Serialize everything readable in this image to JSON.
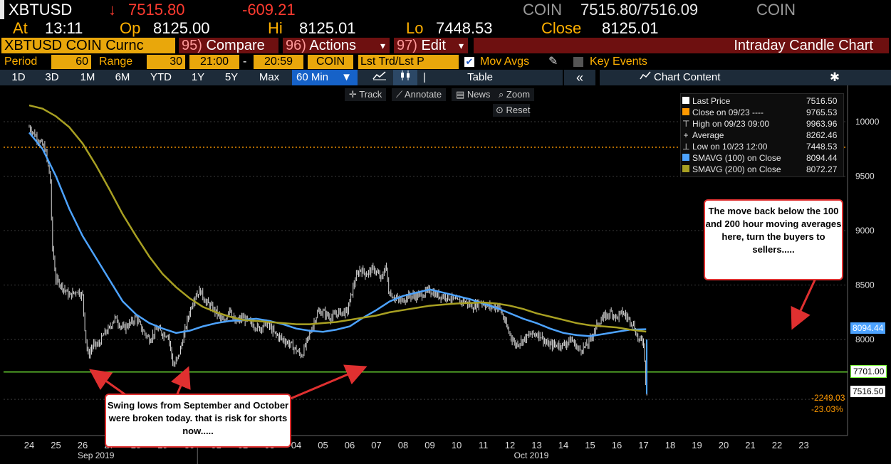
{
  "header": {
    "ticker": "XBTUSD",
    "arrow": "↓",
    "last": "7515.80",
    "change": "-609.21",
    "src1": "COIN",
    "bid_ask": "7515.80/7516.09",
    "src2": "COIN",
    "at_label": "At",
    "at_value": "13:11",
    "op_label": "Op",
    "op_value": "8125.00",
    "hi_label": "Hi",
    "hi_value": "8125.01",
    "lo_label": "Lo",
    "lo_value": "7448.53",
    "close_label": "Close",
    "close_value": "8125.01"
  },
  "menubar": {
    "security": "XBTUSD COIN Curnc",
    "compare_num": "95)",
    "compare": "Compare",
    "actions_num": "96)",
    "actions": "Actions",
    "edit_num": "97)",
    "edit": "Edit",
    "chart_title": "Intraday Candle Chart",
    "dropdown": "▾"
  },
  "settings": {
    "period_label": "Period",
    "period_value": "60",
    "range_label": "Range",
    "range_value": "30",
    "start_time": "21:00",
    "dash": "-",
    "end_time": "20:59",
    "source": "COIN",
    "field": "Lst Trd/Lst P",
    "mov_avgs": "Mov Avgs",
    "key_events": "Key Events"
  },
  "tabs": {
    "items": [
      "1D",
      "3D",
      "1M",
      "6M",
      "YTD",
      "1Y",
      "5Y",
      "Max"
    ],
    "active": "60 Min",
    "table": "Table",
    "collapse": "«",
    "chart_content": "Chart Content"
  },
  "tools": {
    "track": "Track",
    "annotate": "Annotate",
    "news": "News",
    "zoom": "Zoom",
    "reset": "Reset"
  },
  "legend": [
    {
      "label": "Last Price",
      "value": "7516.50",
      "color": "#ffffff"
    },
    {
      "label": "Close on 09/23 ----",
      "value": "9765.53",
      "color": "#ff9900"
    },
    {
      "label": "High on 09/23 09:00",
      "value": "9963.96",
      "color": "#bbbbbb"
    },
    {
      "label": "Average",
      "value": "8262.46",
      "color": "#bbbbbb"
    },
    {
      "label": "Low on 10/23 12:00",
      "value": "7448.53",
      "color": "#bbbbbb"
    },
    {
      "label": "SMAVG (100)  on Close",
      "value": "8094.44",
      "color": "#4da3ff"
    },
    {
      "label": "SMAVG (200)  on Close",
      "value": "8072.27",
      "color": "#a8a022"
    }
  ],
  "annotations": {
    "callout_right": "The move back below the 100 and 200 hour moving averages here, turn the buyers to sellers.....",
    "callout_left": "Swing lows from September and October were broken today. that is risk for shorts now....."
  },
  "price_labels": {
    "sma100": "8094.44",
    "support": "7701.00",
    "last": "7516.50",
    "net_change": "-2249.03",
    "pct_change": "-23.03%"
  },
  "chart_data": {
    "type": "candlestick",
    "interval": "60 Min",
    "x_labels": [
      "24",
      "25",
      "26",
      "27",
      "28",
      "29",
      "30",
      "01",
      "02",
      "03",
      "04",
      "05",
      "06",
      "07",
      "08",
      "09",
      "10",
      "11",
      "12",
      "13",
      "14",
      "15",
      "16",
      "17",
      "18",
      "19",
      "20",
      "21",
      "22",
      "23"
    ],
    "month_labels": [
      "Sep 2019",
      "Oct 2019"
    ],
    "ylim": [
      7300,
      10250
    ],
    "y_ticks": [
      8000,
      8500,
      9000,
      9500,
      10000
    ],
    "close_path": [
      [
        0,
        9950
      ],
      [
        0.3,
        9850
      ],
      [
        0.6,
        9750
      ],
      [
        0.8,
        9450
      ],
      [
        0.85,
        8900
      ],
      [
        1.0,
        8550
      ],
      [
        1.2,
        8500
      ],
      [
        1.5,
        8400
      ],
      [
        1.8,
        8450
      ],
      [
        2.0,
        8400
      ],
      [
        2.1,
        8050
      ],
      [
        2.2,
        7850
      ],
      [
        2.4,
        7950
      ],
      [
        2.6,
        7950
      ],
      [
        2.8,
        8050
      ],
      [
        3.0,
        8100
      ],
      [
        3.2,
        8200
      ],
      [
        3.5,
        8100
      ],
      [
        3.8,
        8150
      ],
      [
        4.0,
        8200
      ],
      [
        4.2,
        8100
      ],
      [
        4.5,
        8000
      ],
      [
        4.8,
        8100
      ],
      [
        5.0,
        8050
      ],
      [
        5.2,
        8050
      ],
      [
        5.4,
        7750
      ],
      [
        5.6,
        7850
      ],
      [
        5.8,
        8050
      ],
      [
        6.0,
        8250
      ],
      [
        6.2,
        8400
      ],
      [
        6.4,
        8450
      ],
      [
        6.6,
        8350
      ],
      [
        6.8,
        8300
      ],
      [
        7.0,
        8250
      ],
      [
        7.3,
        8150
      ],
      [
        7.5,
        8300
      ],
      [
        7.7,
        8150
      ],
      [
        8.0,
        8200
      ],
      [
        8.3,
        8150
      ],
      [
        8.6,
        8100
      ],
      [
        8.9,
        8150
      ],
      [
        9.2,
        8050
      ],
      [
        9.5,
        8000
      ],
      [
        9.8,
        7950
      ],
      [
        10.0,
        7900
      ],
      [
        10.2,
        7850
      ],
      [
        10.5,
        8050
      ],
      [
        10.8,
        8250
      ],
      [
        11.0,
        8250
      ],
      [
        11.3,
        8200
      ],
      [
        11.6,
        8250
      ],
      [
        11.9,
        8250
      ],
      [
        12.0,
        8350
      ],
      [
        12.2,
        8550
      ],
      [
        12.4,
        8650
      ],
      [
        12.6,
        8600
      ],
      [
        12.9,
        8650
      ],
      [
        13.2,
        8550
      ],
      [
        13.35,
        8700
      ],
      [
        13.45,
        8450
      ],
      [
        13.6,
        8400
      ],
      [
        13.9,
        8350
      ],
      [
        14.2,
        8400
      ],
      [
        14.6,
        8400
      ],
      [
        15.0,
        8450
      ],
      [
        15.3,
        8400
      ],
      [
        15.6,
        8400
      ],
      [
        16.0,
        8350
      ],
      [
        16.3,
        8350
      ],
      [
        16.6,
        8300
      ],
      [
        16.9,
        8350
      ],
      [
        17.2,
        8300
      ],
      [
        17.6,
        8300
      ],
      [
        17.9,
        8100
      ],
      [
        18.2,
        7950
      ],
      [
        18.5,
        8000
      ],
      [
        18.8,
        8050
      ],
      [
        19.1,
        8050
      ],
      [
        19.4,
        7950
      ],
      [
        19.7,
        7950
      ],
      [
        20.0,
        7950
      ],
      [
        20.3,
        8000
      ],
      [
        20.6,
        7900
      ],
      [
        20.9,
        7950
      ],
      [
        21.1,
        8050
      ],
      [
        21.3,
        8150
      ],
      [
        21.5,
        8200
      ],
      [
        21.8,
        8250
      ],
      [
        22.0,
        8200
      ],
      [
        22.2,
        8250
      ],
      [
        22.4,
        8200
      ],
      [
        22.6,
        8150
      ],
      [
        22.8,
        8000
      ],
      [
        23.0,
        7980
      ],
      [
        23.1,
        7550
      ],
      [
        23.15,
        7516
      ]
    ],
    "series": [
      {
        "name": "SMAVG (100)  on Close",
        "color": "#4da3ff",
        "points": [
          [
            0,
            9900
          ],
          [
            0.5,
            9750
          ],
          [
            1.0,
            9500
          ],
          [
            1.5,
            9200
          ],
          [
            2.0,
            8950
          ],
          [
            2.5,
            8750
          ],
          [
            3.0,
            8550
          ],
          [
            3.5,
            8350
          ],
          [
            4.0,
            8230
          ],
          [
            4.5,
            8150
          ],
          [
            5.0,
            8100
          ],
          [
            5.5,
            8060
          ],
          [
            6.0,
            8080
          ],
          [
            6.5,
            8120
          ],
          [
            7.0,
            8150
          ],
          [
            7.5,
            8170
          ],
          [
            8.0,
            8180
          ],
          [
            8.5,
            8190
          ],
          [
            9.0,
            8170
          ],
          [
            9.5,
            8140
          ],
          [
            10.0,
            8100
          ],
          [
            10.5,
            8080
          ],
          [
            11.0,
            8070
          ],
          [
            11.5,
            8090
          ],
          [
            12.0,
            8120
          ],
          [
            12.5,
            8200
          ],
          [
            13.0,
            8270
          ],
          [
            13.5,
            8350
          ],
          [
            14.0,
            8400
          ],
          [
            14.5,
            8430
          ],
          [
            15.0,
            8460
          ],
          [
            15.5,
            8430
          ],
          [
            16.0,
            8400
          ],
          [
            16.5,
            8370
          ],
          [
            17.0,
            8330
          ],
          [
            17.5,
            8290
          ],
          [
            18.0,
            8240
          ],
          [
            18.5,
            8190
          ],
          [
            19.0,
            8150
          ],
          [
            19.5,
            8100
          ],
          [
            20.0,
            8060
          ],
          [
            20.5,
            8040
          ],
          [
            21.0,
            8030
          ],
          [
            21.5,
            8050
          ],
          [
            22.0,
            8070
          ],
          [
            22.5,
            8090
          ],
          [
            23.1,
            8094
          ]
        ]
      },
      {
        "name": "SMAVG (200)  on Close",
        "color": "#a8a022",
        "points": [
          [
            0,
            10150
          ],
          [
            0.5,
            10120
          ],
          [
            1.0,
            10050
          ],
          [
            1.5,
            9950
          ],
          [
            2.0,
            9800
          ],
          [
            2.5,
            9600
          ],
          [
            3.0,
            9380
          ],
          [
            3.5,
            9150
          ],
          [
            4.0,
            8950
          ],
          [
            4.5,
            8760
          ],
          [
            5.0,
            8600
          ],
          [
            5.5,
            8480
          ],
          [
            6.0,
            8380
          ],
          [
            6.5,
            8300
          ],
          [
            7.0,
            8250
          ],
          [
            7.5,
            8210
          ],
          [
            8.0,
            8180
          ],
          [
            8.5,
            8170
          ],
          [
            9.0,
            8160
          ],
          [
            9.5,
            8150
          ],
          [
            10.0,
            8140
          ],
          [
            10.5,
            8140
          ],
          [
            11.0,
            8150
          ],
          [
            11.5,
            8160
          ],
          [
            12.0,
            8180
          ],
          [
            12.5,
            8200
          ],
          [
            13.0,
            8220
          ],
          [
            13.5,
            8250
          ],
          [
            14.0,
            8270
          ],
          [
            14.5,
            8290
          ],
          [
            15.0,
            8310
          ],
          [
            15.5,
            8320
          ],
          [
            16.0,
            8330
          ],
          [
            16.5,
            8335
          ],
          [
            17.0,
            8340
          ],
          [
            17.5,
            8330
          ],
          [
            18.0,
            8310
          ],
          [
            18.5,
            8280
          ],
          [
            19.0,
            8240
          ],
          [
            19.5,
            8210
          ],
          [
            20.0,
            8180
          ],
          [
            20.5,
            8150
          ],
          [
            21.0,
            8130
          ],
          [
            21.5,
            8120
          ],
          [
            22.0,
            8110
          ],
          [
            22.5,
            8090
          ],
          [
            23.1,
            8072
          ]
        ]
      }
    ],
    "reference_lines": [
      {
        "name": "Close on 09/23",
        "value": 9765.53,
        "color": "#ff9900",
        "style": "dotted"
      },
      {
        "name": "support",
        "value": 7701.0,
        "color": "#7cfc3c",
        "style": "solid"
      }
    ]
  }
}
